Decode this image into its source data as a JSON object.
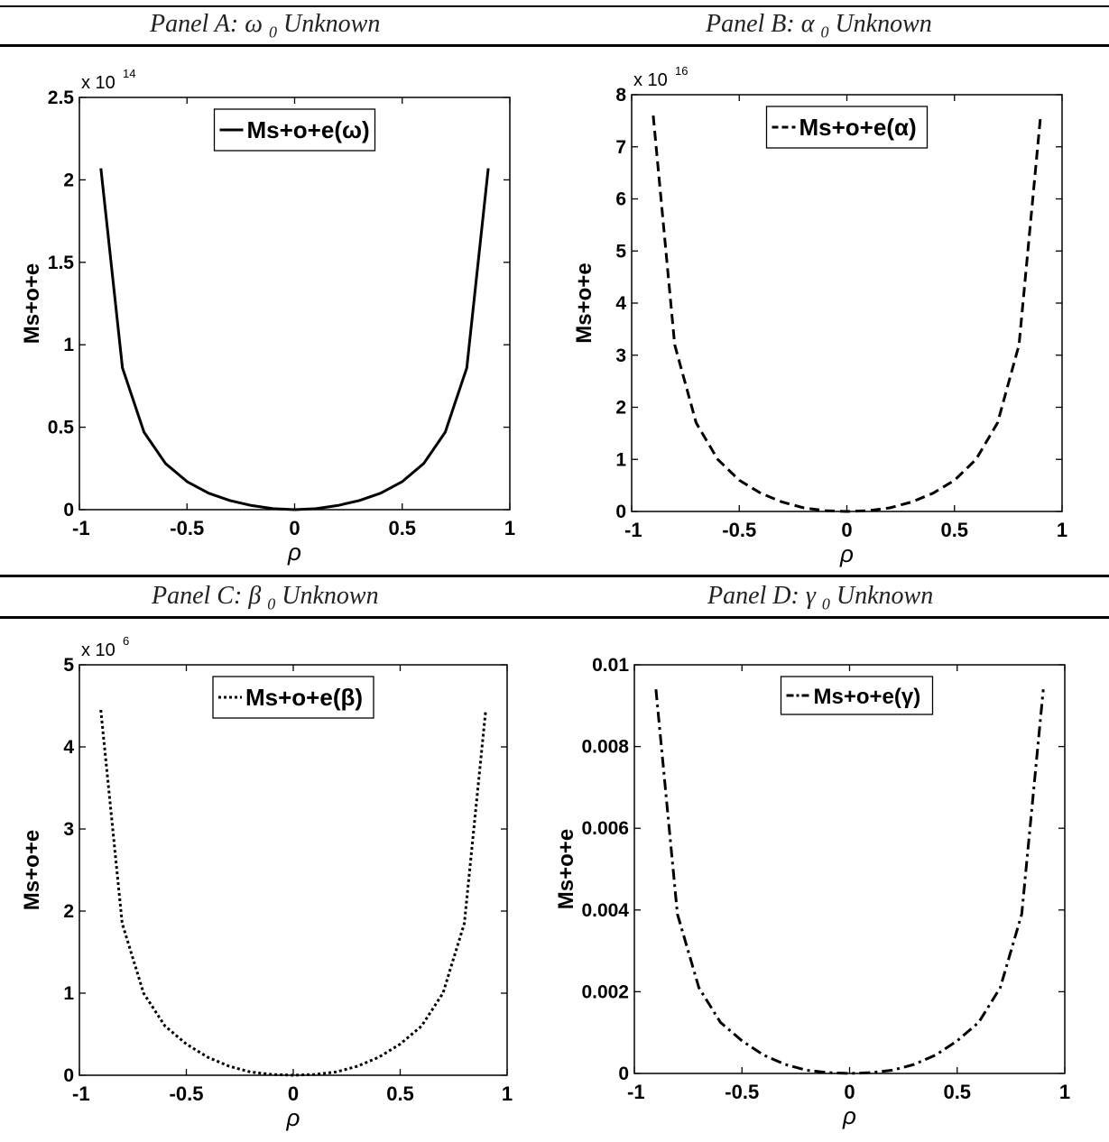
{
  "panels": [
    {
      "id": "A",
      "prefix": "Panel A: ",
      "symbol": "ω",
      "sub": "0",
      "suffix": " Unknown"
    },
    {
      "id": "B",
      "prefix": "Panel B: ",
      "symbol": "α",
      "sub": "0",
      "suffix": " Unknown"
    },
    {
      "id": "C",
      "prefix": "Panel C: ",
      "symbol": "β",
      "sub": "0",
      "suffix": " Unknown"
    },
    {
      "id": "D",
      "prefix": "Panel D: ",
      "symbol": "γ",
      "sub": "0",
      "suffix": " Unknown"
    }
  ],
  "chart_data": [
    {
      "type": "line",
      "panel": "A",
      "xlabel": "ρ",
      "ylabel": "Ms+o+e",
      "xlim": [
        -1,
        1
      ],
      "ylim": [
        0,
        2.5
      ],
      "y_exponent_label": "x 10",
      "y_exponent": "14",
      "xticks": [
        "-1",
        "-0.5",
        "0",
        "0.5",
        "1"
      ],
      "yticks": [
        "0",
        "0.5",
        "1",
        "1.5",
        "2",
        "2.5"
      ],
      "legend_position": "top-center",
      "line_style": "solid",
      "series": [
        {
          "name": "Ms+o+e(ω)",
          "x": [
            -0.9,
            -0.8,
            -0.7,
            -0.6,
            -0.5,
            -0.4,
            -0.3,
            -0.2,
            -0.1,
            0,
            0.1,
            0.2,
            0.3,
            0.4,
            0.5,
            0.6,
            0.7,
            0.8,
            0.9
          ],
          "y": [
            2.07,
            0.86,
            0.47,
            0.28,
            0.17,
            0.1,
            0.055,
            0.025,
            0.006,
            0.0,
            0.006,
            0.025,
            0.055,
            0.1,
            0.17,
            0.28,
            0.47,
            0.86,
            2.07
          ]
        }
      ]
    },
    {
      "type": "line",
      "panel": "B",
      "xlabel": "ρ",
      "ylabel": "Ms+o+e",
      "xlim": [
        -1,
        1
      ],
      "ylim": [
        0,
        8
      ],
      "y_exponent_label": "x 10",
      "y_exponent": "16",
      "xticks": [
        "-1",
        "-0.5",
        "0",
        "0.5",
        "1"
      ],
      "yticks": [
        "0",
        "1",
        "2",
        "3",
        "4",
        "5",
        "6",
        "7",
        "8"
      ],
      "legend_position": "top-center",
      "line_style": "dashed",
      "series": [
        {
          "name": "Ms+o+e(α)",
          "x": [
            -0.9,
            -0.8,
            -0.7,
            -0.6,
            -0.5,
            -0.4,
            -0.3,
            -0.2,
            -0.1,
            0,
            0.1,
            0.2,
            0.3,
            0.4,
            0.5,
            0.6,
            0.7,
            0.8,
            0.9
          ],
          "y": [
            7.6,
            3.2,
            1.7,
            1.0,
            0.6,
            0.35,
            0.18,
            0.07,
            0.015,
            0.0,
            0.015,
            0.07,
            0.18,
            0.35,
            0.6,
            1.0,
            1.7,
            3.2,
            7.6
          ]
        }
      ]
    },
    {
      "type": "line",
      "panel": "C",
      "xlabel": "ρ",
      "ylabel": "Ms+o+e",
      "xlim": [
        -1,
        1
      ],
      "ylim": [
        0,
        5
      ],
      "y_exponent_label": "x 10",
      "y_exponent": "6",
      "xticks": [
        "-1",
        "-0.5",
        "0",
        "0.5",
        "1"
      ],
      "yticks": [
        "0",
        "1",
        "2",
        "3",
        "4",
        "5"
      ],
      "legend_position": "top-center",
      "line_style": "dotted",
      "series": [
        {
          "name": "Ms+o+e(β)",
          "x": [
            -0.9,
            -0.8,
            -0.7,
            -0.6,
            -0.5,
            -0.4,
            -0.3,
            -0.2,
            -0.1,
            0,
            0.1,
            0.2,
            0.3,
            0.4,
            0.5,
            0.6,
            0.7,
            0.8,
            0.9
          ],
          "y": [
            4.45,
            1.85,
            1.0,
            0.6,
            0.38,
            0.22,
            0.11,
            0.04,
            0.01,
            0.0,
            0.01,
            0.04,
            0.11,
            0.22,
            0.38,
            0.6,
            1.0,
            1.85,
            4.45
          ]
        }
      ]
    },
    {
      "type": "line",
      "panel": "D",
      "xlabel": "ρ",
      "ylabel": "Ms+o+e",
      "xlim": [
        -1,
        1
      ],
      "ylim": [
        0,
        0.01
      ],
      "y_exponent_label": "",
      "y_exponent": "",
      "xticks": [
        "-1",
        "-0.5",
        "0",
        "0.5",
        "1"
      ],
      "yticks": [
        "0",
        "0.002",
        "0.004",
        "0.006",
        "0.008",
        "0.01"
      ],
      "legend_position": "top-center",
      "line_style": "dash-dot",
      "series": [
        {
          "name": "Ms+o+e(γ)",
          "x": [
            -0.9,
            -0.8,
            -0.7,
            -0.6,
            -0.5,
            -0.4,
            -0.3,
            -0.2,
            -0.1,
            0,
            0.1,
            0.2,
            0.3,
            0.4,
            0.5,
            0.6,
            0.7,
            0.8,
            0.9
          ],
          "y": [
            0.0094,
            0.0039,
            0.0021,
            0.00125,
            0.0008,
            0.00045,
            0.00022,
            8e-05,
            2e-05,
            0.0,
            2e-05,
            8e-05,
            0.00022,
            0.00045,
            0.0008,
            0.00125,
            0.0021,
            0.0039,
            0.0094
          ]
        }
      ]
    }
  ]
}
